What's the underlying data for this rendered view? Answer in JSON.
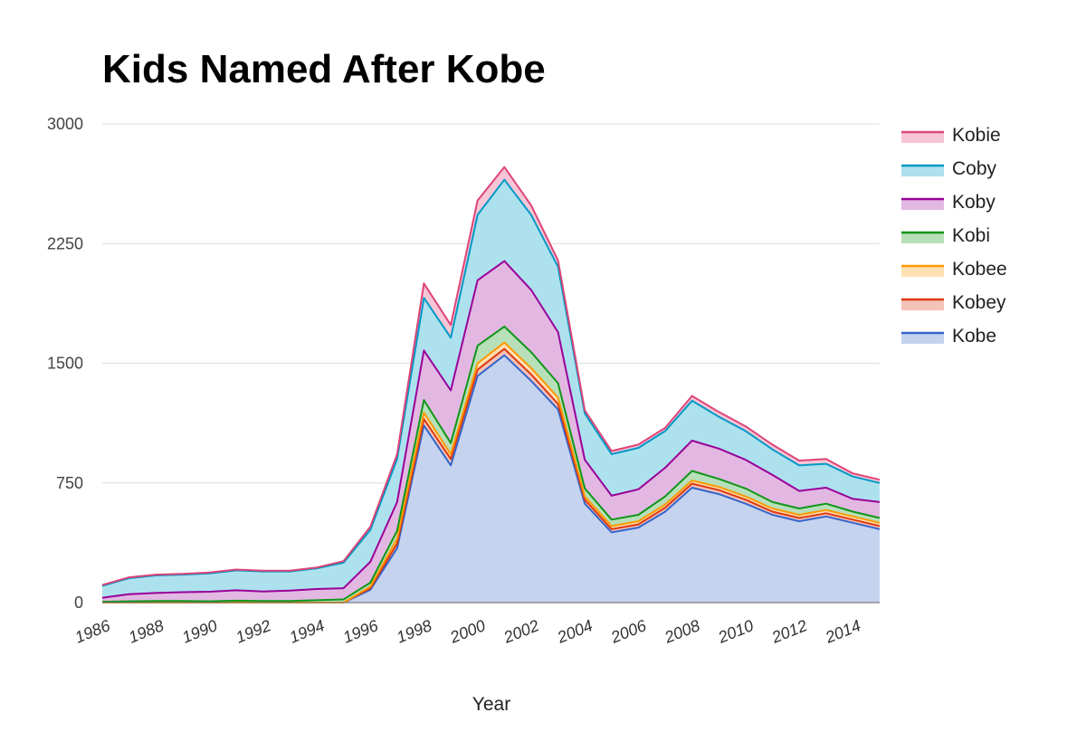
{
  "chart_data": {
    "type": "area",
    "stacked": true,
    "title": "Kids Named After Kobe",
    "xlabel": "Year",
    "ylabel": "",
    "ylim": [
      0,
      3000
    ],
    "yticks": [
      "0",
      "750",
      "1500",
      "2250",
      "3000"
    ],
    "xticks": [
      "1986",
      "1988",
      "1990",
      "1992",
      "1994",
      "1996",
      "1998",
      "2000",
      "2002",
      "2004",
      "2006",
      "2008",
      "2010",
      "2012",
      "2014"
    ],
    "x": [
      1986,
      1987,
      1988,
      1989,
      1990,
      1991,
      1992,
      1993,
      1994,
      1995,
      1996,
      1997,
      1998,
      1999,
      2000,
      2001,
      2002,
      2003,
      2004,
      2005,
      2006,
      2007,
      2008,
      2009,
      2010,
      2011,
      2012,
      2013,
      2014,
      2015
    ],
    "grid": true,
    "legend_position": "right",
    "series": [
      {
        "name": "Kobe",
        "color": "#3366cc",
        "fill": "#c5d3ef",
        "values": [
          0,
          0,
          0,
          0,
          0,
          0,
          0,
          0,
          0,
          0,
          80,
          340,
          1110,
          860,
          1420,
          1550,
          1390,
          1210,
          620,
          440,
          470,
          570,
          720,
          680,
          620,
          550,
          510,
          540,
          500,
          460
        ]
      },
      {
        "name": "Kobey",
        "color": "#dc3912",
        "fill": "#f4c3b8",
        "values": [
          0,
          0,
          0,
          0,
          0,
          0,
          0,
          0,
          0,
          0,
          10,
          30,
          40,
          40,
          40,
          40,
          40,
          35,
          25,
          20,
          20,
          25,
          25,
          25,
          25,
          20,
          20,
          20,
          20,
          20
        ]
      },
      {
        "name": "Kobee",
        "color": "#ff9900",
        "fill": "#ffe0b3",
        "values": [
          0,
          0,
          0,
          0,
          0,
          0,
          0,
          0,
          0,
          0,
          10,
          30,
          40,
          30,
          40,
          40,
          40,
          40,
          20,
          20,
          20,
          20,
          20,
          20,
          20,
          20,
          20,
          20,
          20,
          20
        ]
      },
      {
        "name": "Kobi",
        "color": "#109618",
        "fill": "#b7dfb9",
        "values": [
          5,
          8,
          10,
          10,
          8,
          12,
          10,
          10,
          15,
          20,
          25,
          50,
          80,
          70,
          110,
          100,
          100,
          90,
          50,
          40,
          40,
          50,
          60,
          50,
          50,
          40,
          40,
          40,
          30,
          30
        ]
      },
      {
        "name": "Koby",
        "color": "#990099",
        "fill": "#e2b8e2",
        "values": [
          25,
          45,
          50,
          55,
          60,
          65,
          60,
          65,
          70,
          70,
          130,
          180,
          310,
          330,
          410,
          410,
          390,
          320,
          180,
          150,
          160,
          180,
          190,
          190,
          180,
          170,
          110,
          100,
          80,
          100
        ]
      },
      {
        "name": "Coby",
        "color": "#0099c6",
        "fill": "#aee1ee",
        "values": [
          75,
          100,
          110,
          110,
          115,
          125,
          125,
          120,
          130,
          160,
          200,
          270,
          330,
          330,
          410,
          510,
          470,
          410,
          290,
          260,
          260,
          230,
          250,
          200,
          180,
          160,
          160,
          150,
          140,
          120
        ]
      },
      {
        "name": "Kobie",
        "color": "#dd4477",
        "fill": "#f6c6d6",
        "values": [
          5,
          5,
          5,
          5,
          5,
          5,
          5,
          5,
          5,
          10,
          20,
          30,
          90,
          80,
          90,
          80,
          60,
          40,
          20,
          20,
          20,
          20,
          30,
          30,
          30,
          30,
          30,
          30,
          20,
          20
        ]
      }
    ]
  }
}
